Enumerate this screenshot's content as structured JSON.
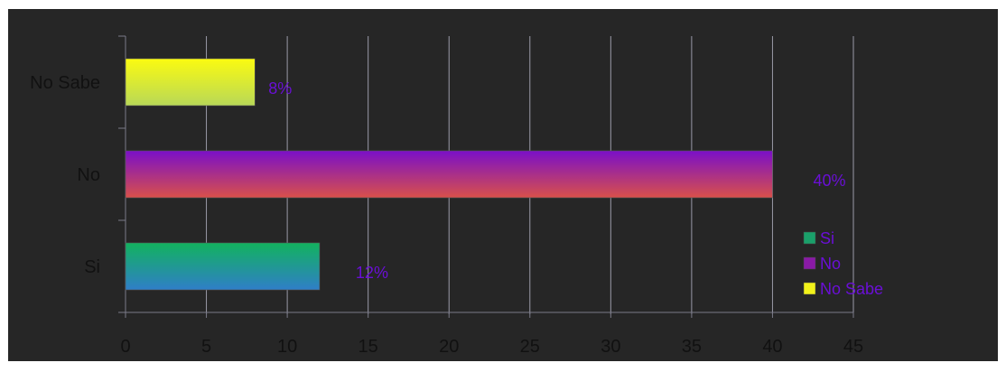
{
  "chart_data": {
    "type": "bar",
    "orientation": "horizontal",
    "categories": [
      "Si",
      "No",
      "No Sabe"
    ],
    "values": [
      12,
      40,
      8
    ],
    "data_labels": [
      "12%",
      "40%",
      "8%"
    ],
    "xlim": [
      0,
      45
    ],
    "x_ticks": [
      "0",
      "5",
      "10",
      "15",
      "20",
      "25",
      "30",
      "35",
      "40",
      "45"
    ],
    "grid": true,
    "legend_position": "right",
    "legend": [
      {
        "label": "Si",
        "color": "#1aa06a"
      },
      {
        "label": "No",
        "color": "#8a1aa6"
      },
      {
        "label": "No Sabe",
        "color": "#f2f21a"
      }
    ],
    "title": "",
    "xlabel": "",
    "ylabel": ""
  },
  "colors": {
    "label_purple": "#6a0fd6",
    "background_dark": "#262626",
    "background_light": "#c8c8f8"
  }
}
